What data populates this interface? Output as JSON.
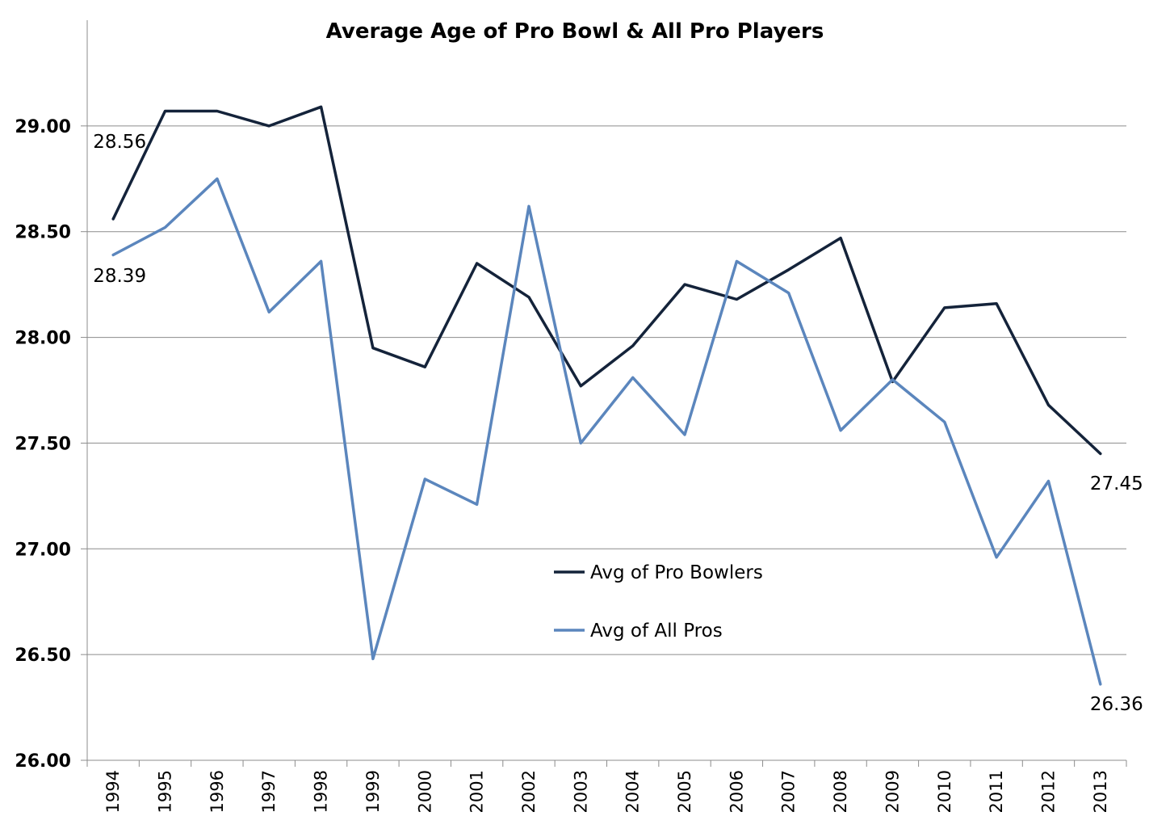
{
  "chart_data": {
    "type": "line",
    "title": "Average Age of Pro Bowl & All Pro Players",
    "x": [
      "1994",
      "1995",
      "1996",
      "1997",
      "1998",
      "1999",
      "2000",
      "2001",
      "2002",
      "2003",
      "2004",
      "2005",
      "2006",
      "2007",
      "2008",
      "2009",
      "2010",
      "2011",
      "2012",
      "2013"
    ],
    "ylim": [
      26.0,
      29.5
    ],
    "yticks": [
      "26.00",
      "26.50",
      "27.00",
      "27.50",
      "28.00",
      "28.50",
      "29.00"
    ],
    "grid": true,
    "legend_position": "center",
    "series": [
      {
        "name": "Avg of Pro Bowlers",
        "color": "#14233a",
        "values": [
          28.56,
          29.07,
          29.07,
          29.0,
          29.09,
          27.95,
          27.86,
          28.35,
          28.19,
          27.77,
          27.96,
          28.25,
          28.18,
          28.32,
          28.47,
          27.79,
          28.14,
          28.16,
          27.68,
          27.45
        ]
      },
      {
        "name": "Avg of All Pros",
        "color": "#5b86bd",
        "values": [
          28.39,
          28.52,
          28.75,
          28.12,
          28.36,
          26.48,
          27.33,
          27.21,
          28.62,
          27.5,
          27.81,
          27.54,
          28.36,
          28.21,
          27.56,
          27.8,
          27.6,
          26.96,
          27.32,
          26.36
        ]
      }
    ],
    "annotations": [
      "28.56",
      "28.39",
      "27.45",
      "26.36"
    ]
  }
}
